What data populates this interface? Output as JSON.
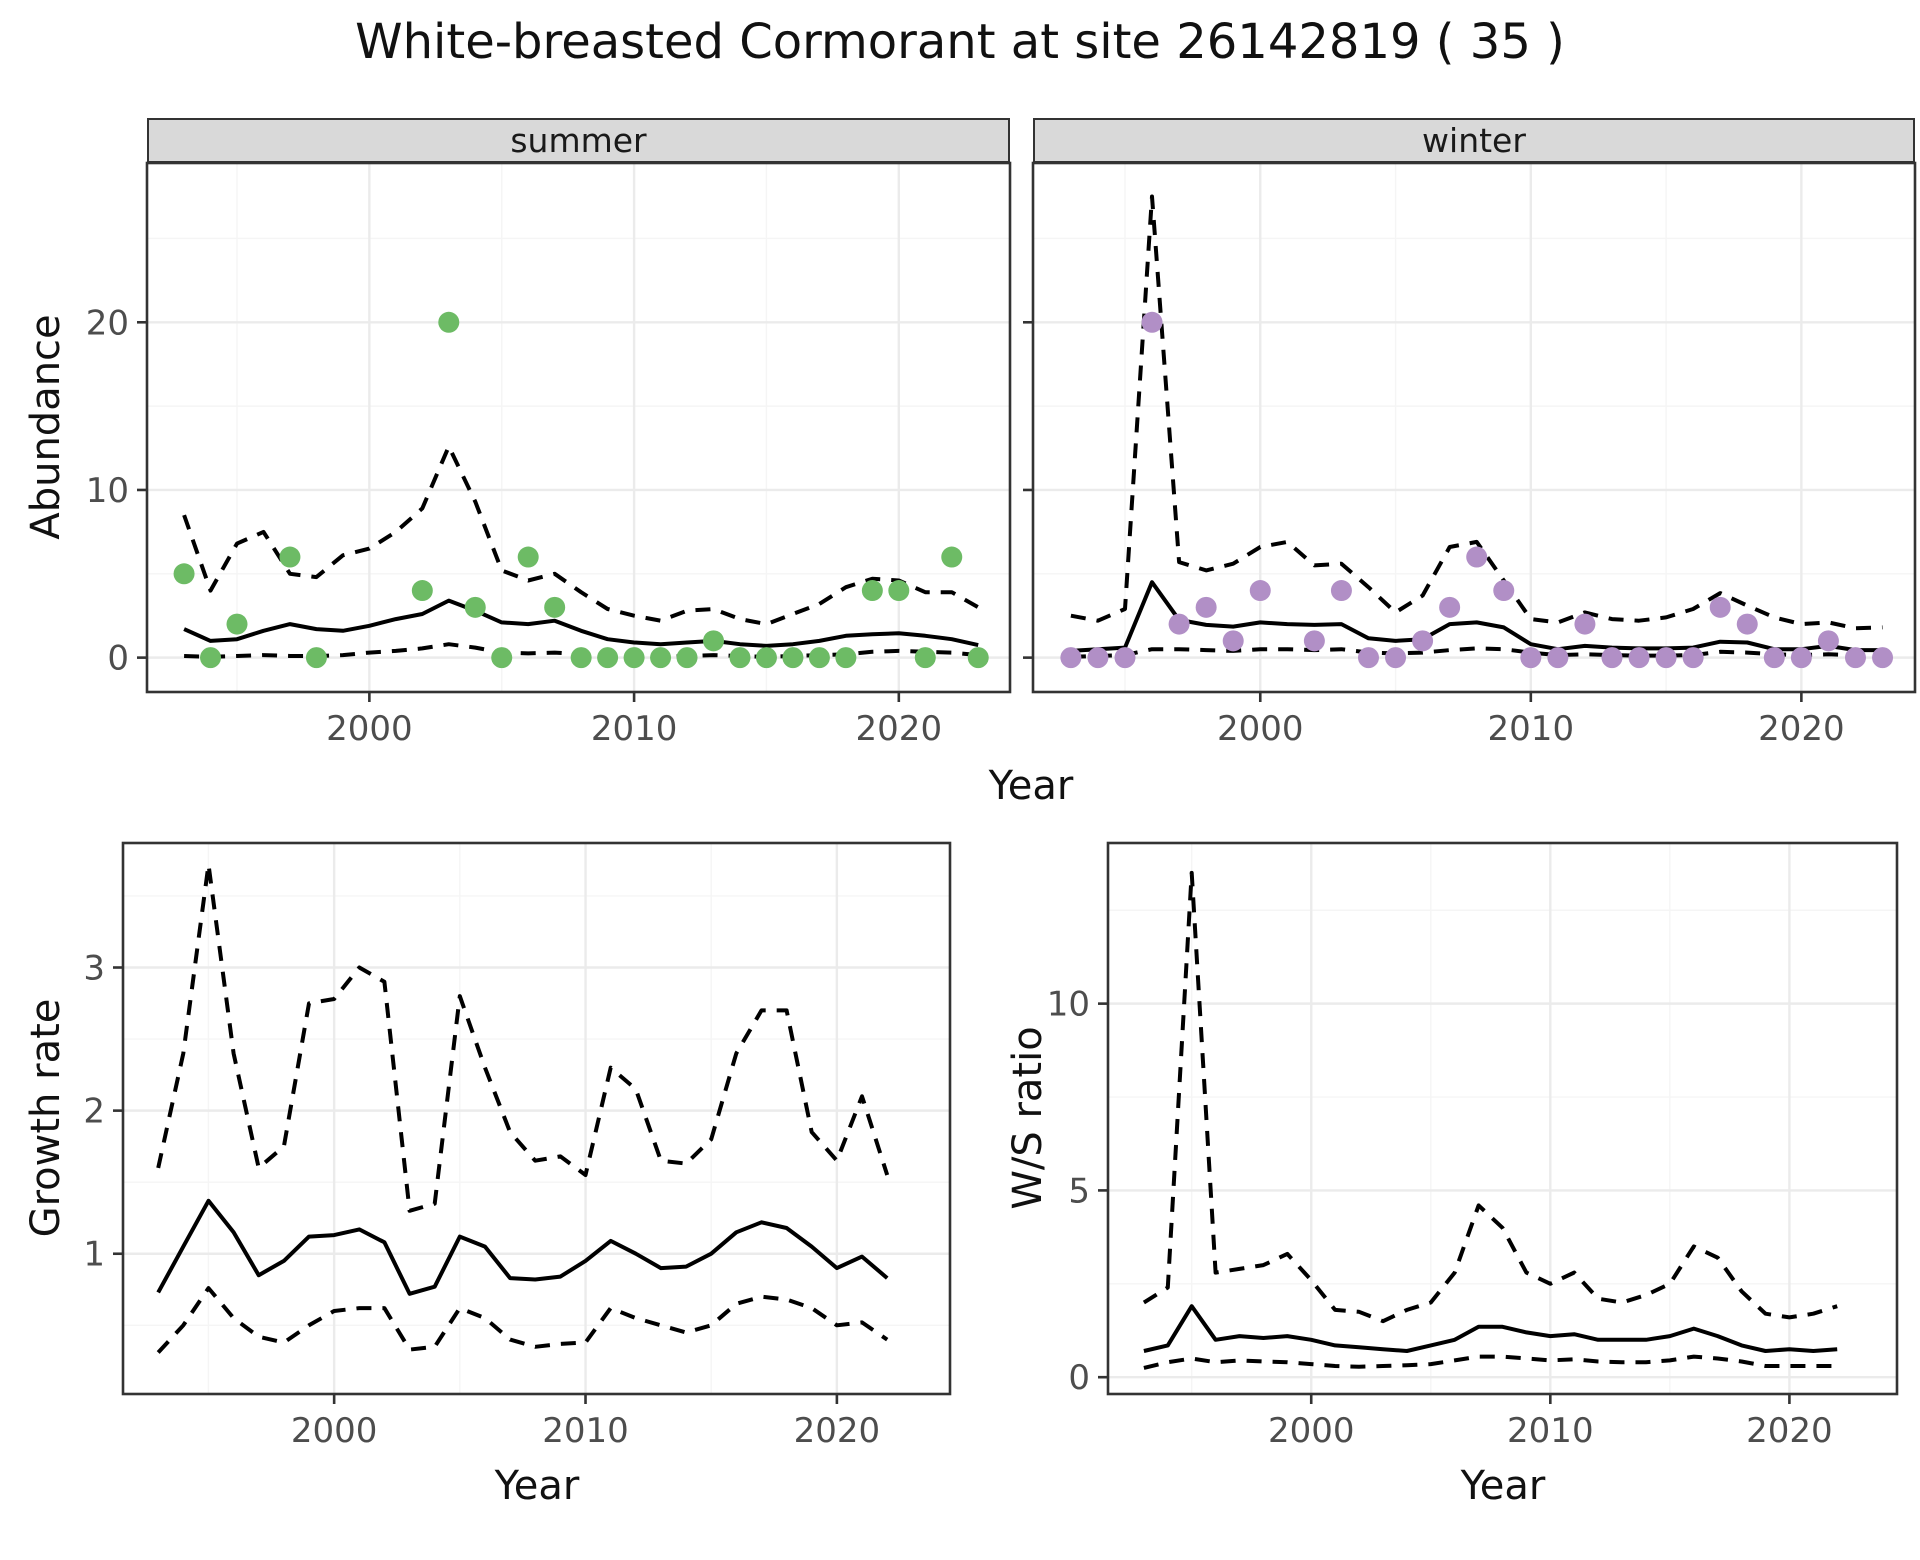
{
  "title": "White-breasted Cormorant at site 26142819 ( 35 )",
  "facets": {
    "summer": "summer",
    "winter": "winter"
  },
  "axes": {
    "year": "Year",
    "abundance": "Abundance",
    "growth": "Growth rate",
    "ws": "W/S ratio"
  },
  "colors": {
    "summer_points": "#6DBB65",
    "winter_points": "#B18FC6",
    "line": "#000000",
    "panel_border": "#333333",
    "grid_major": "#ebebeb",
    "grid_minor": "#f5f5f5",
    "strip_bg": "#d9d9d9",
    "tick_text": "#4d4d4d",
    "tick_mark": "#333333"
  },
  "chart_data": [
    {
      "panel": "summer",
      "type": "scatter+line",
      "facet_label": "summer",
      "xlabel": "Year",
      "ylabel": "Abundance",
      "x": [
        1993,
        1994,
        1995,
        1996,
        1997,
        1998,
        1999,
        2000,
        2001,
        2002,
        2003,
        2004,
        2005,
        2006,
        2007,
        2008,
        2009,
        2010,
        2011,
        2012,
        2013,
        2014,
        2015,
        2016,
        2017,
        2018,
        2019,
        2020,
        2021,
        2022,
        2023
      ],
      "series": [
        {
          "name": "observed_counts",
          "style": "points",
          "color": "#6DBB65",
          "values": [
            5,
            0,
            2,
            null,
            6,
            0,
            null,
            null,
            null,
            4,
            20,
            3,
            0,
            6,
            3,
            0,
            0,
            0,
            0,
            0,
            1,
            0,
            0,
            0,
            0,
            0,
            4,
            4,
            0,
            6,
            0
          ]
        },
        {
          "name": "upper_ci",
          "style": "dashed",
          "values": [
            8.5,
            4.0,
            6.8,
            7.5,
            5.0,
            4.8,
            6.1,
            6.5,
            7.5,
            8.9,
            12.6,
            9.3,
            5.2,
            4.6,
            5.0,
            3.9,
            2.9,
            2.5,
            2.2,
            2.8,
            2.9,
            2.3,
            2.0,
            2.6,
            3.2,
            4.2,
            4.7,
            4.6,
            3.9,
            3.9,
            3.0
          ]
        },
        {
          "name": "lower_ci",
          "style": "dashed",
          "values": [
            0.1,
            0.05,
            0.1,
            0.15,
            0.1,
            0.1,
            0.15,
            0.3,
            0.4,
            0.55,
            0.8,
            0.6,
            0.3,
            0.25,
            0.3,
            0.2,
            0.1,
            0.05,
            0.05,
            0.1,
            0.15,
            0.1,
            0.05,
            0.1,
            0.15,
            0.2,
            0.35,
            0.4,
            0.35,
            0.3,
            0.15
          ]
        },
        {
          "name": "median",
          "style": "solid",
          "values": [
            1.7,
            1.0,
            1.1,
            1.6,
            2.0,
            1.7,
            1.6,
            1.9,
            2.3,
            2.6,
            3.4,
            2.8,
            2.1,
            2.0,
            2.2,
            1.6,
            1.1,
            0.9,
            0.8,
            0.9,
            1.0,
            0.8,
            0.7,
            0.8,
            1.0,
            1.3,
            1.4,
            1.45,
            1.3,
            1.1,
            0.75
          ]
        }
      ],
      "xlim": [
        1991.6,
        2024.2
      ],
      "ylim": [
        -2.05,
        29.5
      ],
      "xticks": [
        2000,
        2010,
        2020
      ],
      "xminor": [
        1995,
        2005,
        2015
      ],
      "yticks": [
        0,
        10,
        20
      ],
      "yminor": [
        5,
        15,
        25
      ],
      "show_y_tick_labels": true,
      "grid": true
    },
    {
      "panel": "winter",
      "type": "scatter+line",
      "facet_label": "winter",
      "xlabel": "Year",
      "ylabel": "Abundance",
      "x": [
        1993,
        1994,
        1995,
        1996,
        1997,
        1998,
        1999,
        2000,
        2001,
        2002,
        2003,
        2004,
        2005,
        2006,
        2007,
        2008,
        2009,
        2010,
        2011,
        2012,
        2013,
        2014,
        2015,
        2016,
        2017,
        2018,
        2019,
        2020,
        2021,
        2022,
        2023
      ],
      "series": [
        {
          "name": "observed_counts",
          "style": "points",
          "color": "#B18FC6",
          "values": [
            0,
            0,
            0,
            20,
            2,
            3,
            1,
            4,
            null,
            1,
            4,
            0,
            0,
            1,
            3,
            6,
            4,
            0,
            0,
            2,
            0,
            0,
            0,
            0,
            3,
            2,
            0,
            0,
            1,
            0,
            0
          ]
        },
        {
          "name": "upper_ci",
          "style": "dashed",
          "values": [
            2.5,
            2.2,
            2.9,
            27.5,
            5.7,
            5.2,
            5.6,
            6.6,
            6.9,
            5.5,
            5.6,
            4.2,
            2.7,
            3.7,
            6.6,
            6.9,
            4.6,
            2.3,
            2.1,
            2.7,
            2.3,
            2.2,
            2.4,
            2.9,
            3.85,
            3.1,
            2.4,
            2.0,
            2.1,
            1.75,
            1.8
          ]
        },
        {
          "name": "lower_ci",
          "style": "dashed",
          "values": [
            0.05,
            0.1,
            0.15,
            0.5,
            0.5,
            0.45,
            0.4,
            0.5,
            0.5,
            0.45,
            0.5,
            0.3,
            0.25,
            0.3,
            0.45,
            0.55,
            0.5,
            0.3,
            0.15,
            0.2,
            0.15,
            0.12,
            0.12,
            0.15,
            0.35,
            0.3,
            0.2,
            0.15,
            0.2,
            0.15,
            0.12
          ]
        },
        {
          "name": "median",
          "style": "solid",
          "values": [
            0.4,
            0.5,
            0.6,
            4.5,
            2.25,
            1.95,
            1.85,
            2.1,
            2.0,
            1.95,
            2.0,
            1.15,
            1.0,
            1.1,
            2.0,
            2.1,
            1.8,
            0.8,
            0.5,
            0.7,
            0.6,
            0.55,
            0.55,
            0.6,
            0.95,
            0.9,
            0.5,
            0.5,
            0.7,
            0.45,
            0.45
          ]
        }
      ],
      "xlim": [
        1991.6,
        2024.2
      ],
      "ylim": [
        -2.05,
        29.5
      ],
      "xticks": [
        2000,
        2010,
        2020
      ],
      "xminor": [
        1995,
        2005,
        2015
      ],
      "yticks": [
        0,
        10,
        20
      ],
      "yminor": [
        5,
        15,
        25
      ],
      "show_y_tick_labels": false,
      "grid": true
    },
    {
      "panel": "growth",
      "type": "line",
      "facet_label": "",
      "xlabel": "Year",
      "ylabel": "Growth rate",
      "x": [
        1993,
        1994,
        1995,
        1996,
        1997,
        1998,
        1999,
        2000,
        2001,
        2002,
        2003,
        2004,
        2005,
        2006,
        2007,
        2008,
        2009,
        2010,
        2011,
        2012,
        2013,
        2014,
        2015,
        2016,
        2017,
        2018,
        2019,
        2020,
        2021,
        2022
      ],
      "series": [
        {
          "name": "upper_ci",
          "style": "dashed",
          "values": [
            1.6,
            2.4,
            3.72,
            2.4,
            1.6,
            1.75,
            2.75,
            2.78,
            3.0,
            2.9,
            1.3,
            1.35,
            2.8,
            2.3,
            1.85,
            1.65,
            1.68,
            1.55,
            2.3,
            2.15,
            1.65,
            1.63,
            1.8,
            2.4,
            2.7,
            2.7,
            1.85,
            1.65,
            2.1,
            1.55
          ]
        },
        {
          "name": "lower_ci",
          "style": "dashed",
          "values": [
            0.31,
            0.5,
            0.76,
            0.55,
            0.42,
            0.38,
            0.5,
            0.6,
            0.62,
            0.62,
            0.33,
            0.35,
            0.62,
            0.55,
            0.4,
            0.35,
            0.37,
            0.38,
            0.62,
            0.55,
            0.5,
            0.45,
            0.5,
            0.65,
            0.7,
            0.68,
            0.62,
            0.5,
            0.52,
            0.4
          ]
        },
        {
          "name": "median",
          "style": "solid",
          "values": [
            0.73,
            1.05,
            1.37,
            1.15,
            0.85,
            0.95,
            1.12,
            1.13,
            1.17,
            1.08,
            0.72,
            0.77,
            1.12,
            1.05,
            0.83,
            0.82,
            0.84,
            0.95,
            1.09,
            1.0,
            0.9,
            0.91,
            1.0,
            1.15,
            1.22,
            1.18,
            1.05,
            0.9,
            0.98,
            0.83
          ]
        }
      ],
      "xlim": [
        1991.6,
        2024.5
      ],
      "ylim": [
        0.02,
        3.87
      ],
      "xticks": [
        2000,
        2010,
        2020
      ],
      "xminor": [
        1995,
        2005,
        2015
      ],
      "yticks": [
        1,
        2,
        3
      ],
      "yminor": [
        0.5,
        1.5,
        2.5,
        3.5
      ],
      "show_y_tick_labels": true,
      "grid": true
    },
    {
      "panel": "ws",
      "type": "line",
      "facet_label": "",
      "xlabel": "Year",
      "ylabel": "W/S ratio",
      "x": [
        1993,
        1994,
        1995,
        1996,
        1997,
        1998,
        1999,
        2000,
        2001,
        2002,
        2003,
        2004,
        2005,
        2006,
        2007,
        2008,
        2009,
        2010,
        2011,
        2012,
        2013,
        2014,
        2015,
        2016,
        2017,
        2018,
        2019,
        2020,
        2021,
        2022
      ],
      "series": [
        {
          "name": "upper_ci",
          "style": "dashed",
          "values": [
            2.0,
            2.4,
            13.5,
            2.8,
            2.9,
            3.0,
            3.3,
            2.6,
            1.8,
            1.75,
            1.5,
            1.8,
            2.0,
            2.8,
            4.6,
            4.0,
            2.8,
            2.5,
            2.8,
            2.1,
            2.0,
            2.2,
            2.5,
            3.5,
            3.2,
            2.3,
            1.7,
            1.6,
            1.7,
            1.9
          ]
        },
        {
          "name": "lower_ci",
          "style": "dashed",
          "values": [
            0.25,
            0.4,
            0.5,
            0.4,
            0.45,
            0.42,
            0.4,
            0.35,
            0.3,
            0.28,
            0.3,
            0.32,
            0.35,
            0.45,
            0.55,
            0.55,
            0.5,
            0.45,
            0.48,
            0.42,
            0.4,
            0.4,
            0.45,
            0.55,
            0.5,
            0.42,
            0.3,
            0.3,
            0.3,
            0.3
          ]
        },
        {
          "name": "median",
          "style": "solid",
          "values": [
            0.7,
            0.85,
            1.9,
            1.0,
            1.1,
            1.05,
            1.1,
            1.0,
            0.85,
            0.8,
            0.75,
            0.7,
            0.85,
            1.0,
            1.35,
            1.35,
            1.2,
            1.1,
            1.15,
            1.0,
            1.0,
            1.0,
            1.1,
            1.3,
            1.1,
            0.85,
            0.7,
            0.75,
            0.7,
            0.75
          ]
        }
      ],
      "xlim": [
        1991.5,
        2024.5
      ],
      "ylim": [
        -0.45,
        14.3
      ],
      "xticks": [
        2000,
        2010,
        2020
      ],
      "xminor": [
        1995,
        2005,
        2015
      ],
      "yticks": [
        0,
        5,
        10
      ],
      "yminor": [
        2.5,
        7.5,
        12.5
      ],
      "show_y_tick_labels": true,
      "grid": true
    }
  ]
}
